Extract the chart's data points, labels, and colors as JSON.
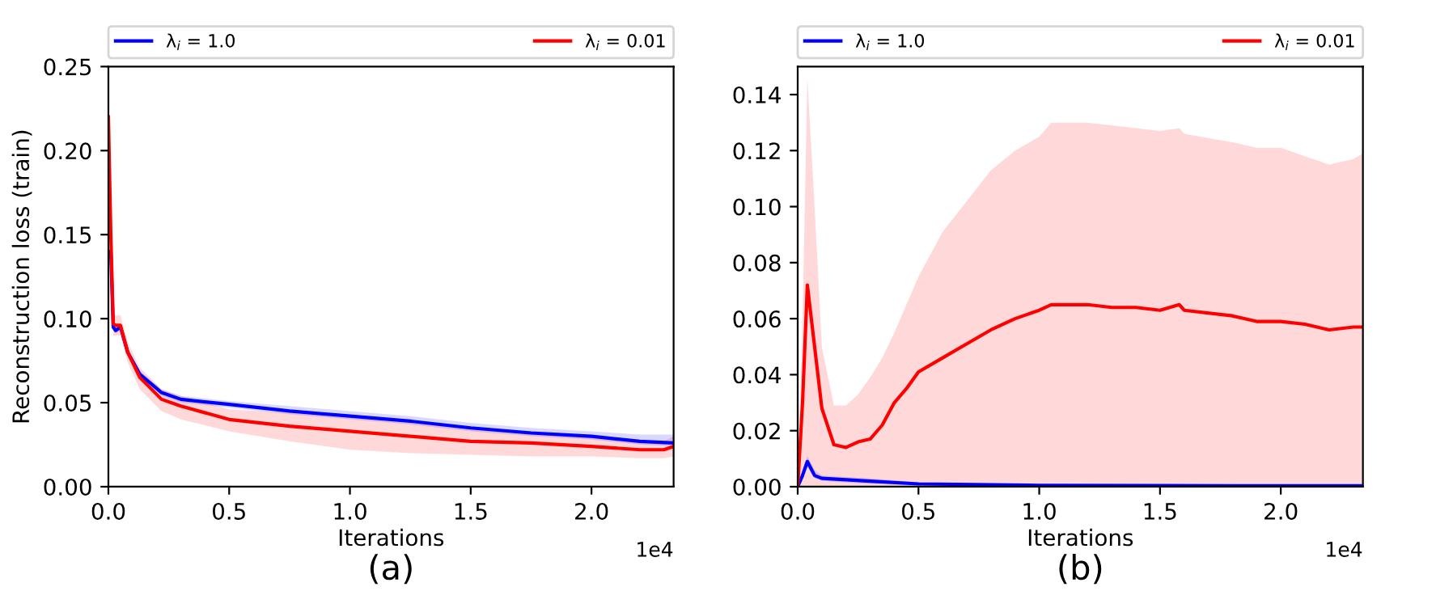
{
  "chart_data": [
    {
      "type": "line",
      "xlabel": "Iterations",
      "ylabel": "Reconstruction loss (train)",
      "annotations": [
        "1e4",
        "(a)"
      ],
      "xlim": [
        0,
        2.34
      ],
      "ylim": [
        0,
        0.25
      ],
      "xticks": [
        {
          "value": 0,
          "label": "0.0"
        },
        {
          "value": 0.5,
          "label": "0.5"
        },
        {
          "value": 1,
          "label": "1.0"
        },
        {
          "value": 1.5,
          "label": "1.5"
        },
        {
          "value": 2,
          "label": "2.0"
        }
      ],
      "yticks": [
        {
          "value": 0,
          "label": "0.00"
        },
        {
          "value": 0.05,
          "label": "0.05"
        },
        {
          "value": 0.1,
          "label": "0.10"
        },
        {
          "value": 0.15,
          "label": "0.15"
        },
        {
          "value": 0.2,
          "label": "0.20"
        },
        {
          "value": 0.25,
          "label": "0.25"
        }
      ],
      "legend": "top",
      "grid": false,
      "series": [
        {
          "name": "λ$_{i}$ = 1.0",
          "color": "#0000ff",
          "x": [
            0,
            0.01,
            0.02,
            0.03,
            0.05,
            0.08,
            0.13,
            0.22,
            0.3,
            0.5,
            0.75,
            1.0,
            1.25,
            1.5,
            1.75,
            2.0,
            2.2,
            2.34
          ],
          "values": [
            null,
            0.14,
            0.095,
            0.093,
            0.095,
            0.08,
            0.067,
            0.056,
            0.052,
            0.049,
            0.045,
            0.042,
            0.039,
            0.035,
            0.032,
            0.03,
            0.027,
            0.026
          ],
          "lower": [
            0.21,
            0.14,
            0.093,
            0.091,
            0.093,
            0.078,
            0.065,
            0.054,
            0.05,
            0.047,
            0.043,
            0.04,
            0.037,
            0.033,
            0.03,
            0.028,
            0.025,
            0.024
          ],
          "upper": [
            0.21,
            0.14,
            0.097,
            0.095,
            0.097,
            0.082,
            0.069,
            0.058,
            0.054,
            0.051,
            0.048,
            0.045,
            0.042,
            0.038,
            0.035,
            0.033,
            0.031,
            0.031
          ]
        },
        {
          "name": "λ$_{i}$ = 0.01",
          "color": "#ff0000",
          "x": [
            0,
            0.01,
            0.02,
            0.03,
            0.05,
            0.08,
            0.13,
            0.22,
            0.3,
            0.5,
            0.75,
            1.0,
            1.25,
            1.5,
            1.75,
            2.0,
            2.2,
            2.3,
            2.34
          ],
          "values": [
            0.22,
            0.15,
            0.097,
            0.096,
            0.096,
            0.08,
            0.065,
            0.052,
            0.048,
            0.04,
            0.036,
            0.033,
            0.03,
            0.027,
            0.026,
            0.024,
            0.022,
            0.022,
            0.024
          ],
          "lower": [
            0.22,
            0.15,
            0.09,
            0.09,
            0.09,
            0.074,
            0.058,
            0.045,
            0.04,
            0.033,
            0.027,
            0.022,
            0.02,
            0.019,
            0.018,
            0.018,
            0.017,
            0.017,
            0.018
          ],
          "upper": [
            0.22,
            0.15,
            0.104,
            0.102,
            0.102,
            0.086,
            0.071,
            0.058,
            0.054,
            0.046,
            0.044,
            0.041,
            0.038,
            0.035,
            0.033,
            0.03,
            0.027,
            0.027,
            0.03
          ]
        }
      ]
    },
    {
      "type": "line",
      "xlabel": "Iterations",
      "annotations": [
        "1e4",
        "(b)"
      ],
      "xlim": [
        0,
        2.34
      ],
      "ylim": [
        0,
        0.15
      ],
      "xticks": [
        {
          "value": 0,
          "label": "0.0"
        },
        {
          "value": 0.5,
          "label": "0.5"
        },
        {
          "value": 1,
          "label": "1.0"
        },
        {
          "value": 1.5,
          "label": "1.5"
        },
        {
          "value": 2,
          "label": "2.0"
        }
      ],
      "yticks": [
        {
          "value": 0,
          "label": "0.00"
        },
        {
          "value": 0.02,
          "label": "0.02"
        },
        {
          "value": 0.04,
          "label": "0.04"
        },
        {
          "value": 0.06,
          "label": "0.06"
        },
        {
          "value": 0.08,
          "label": "0.08"
        },
        {
          "value": 0.1,
          "label": "0.10"
        },
        {
          "value": 0.12,
          "label": "0.12"
        },
        {
          "value": 0.14,
          "label": "0.14"
        }
      ],
      "legend": "top",
      "grid": false,
      "series": [
        {
          "name": "λ$_{i}$ = 1.0",
          "color": "#0000ff",
          "x": [
            0,
            0.02,
            0.04,
            0.07,
            0.1,
            0.3,
            0.5,
            1.0,
            1.5,
            2.0,
            2.34
          ],
          "values": [
            0,
            0.004,
            0.009,
            0.004,
            0.003,
            0.002,
            0.001,
            0.0005,
            0.0004,
            0.0003,
            0.0003
          ],
          "lower": [
            0,
            0.003,
            0.007,
            0.003,
            0.002,
            0.001,
            0.0005,
            0.0002,
            0.0002,
            0.0001,
            0.0001
          ],
          "upper": [
            0,
            0.006,
            0.011,
            0.006,
            0.004,
            0.003,
            0.0015,
            0.0008,
            0.0006,
            0.0005,
            0.0005
          ]
        },
        {
          "name": "λ$_{i}$ = 0.01",
          "color": "#ff0000",
          "x": [
            0,
            0.02,
            0.04,
            0.07,
            0.1,
            0.15,
            0.2,
            0.25,
            0.3,
            0.35,
            0.4,
            0.45,
            0.5,
            0.6,
            0.7,
            0.8,
            0.9,
            1.0,
            1.05,
            1.2,
            1.3,
            1.4,
            1.5,
            1.58,
            1.6,
            1.8,
            1.9,
            2.0,
            2.1,
            2.2,
            2.3,
            2.34
          ],
          "values": [
            0,
            0.03,
            0.072,
            0.05,
            0.028,
            0.015,
            0.014,
            0.016,
            0.017,
            0.022,
            0.03,
            0.035,
            0.041,
            0.046,
            0.051,
            0.056,
            0.06,
            0.063,
            0.065,
            0.065,
            0.064,
            0.064,
            0.063,
            0.065,
            0.063,
            0.061,
            0.059,
            0.059,
            0.058,
            0.056,
            0.057,
            0.057
          ],
          "lower": [
            0,
            0,
            0,
            0,
            0,
            0,
            0,
            0,
            0,
            0,
            0,
            0,
            0,
            0,
            0,
            0,
            0,
            0,
            0,
            0,
            0,
            0,
            0,
            0,
            0,
            0,
            0,
            0,
            0,
            0,
            0,
            0
          ],
          "upper": [
            0,
            0.06,
            0.146,
            0.1,
            0.05,
            0.029,
            0.029,
            0.033,
            0.039,
            0.046,
            0.055,
            0.065,
            0.075,
            0.091,
            0.102,
            0.113,
            0.12,
            0.125,
            0.13,
            0.13,
            0.129,
            0.128,
            0.127,
            0.128,
            0.126,
            0.123,
            0.121,
            0.121,
            0.118,
            0.115,
            0.117,
            0.119
          ]
        }
      ]
    }
  ]
}
